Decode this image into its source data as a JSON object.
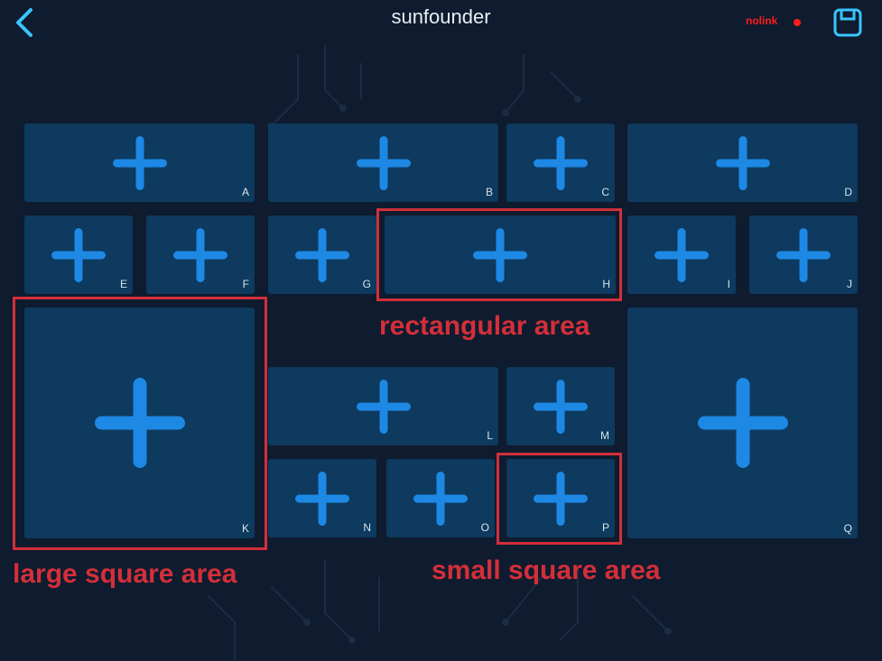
{
  "header": {
    "title": "sunfounder",
    "status_text": "nolink",
    "status_color": "#ff1c1c",
    "back_icon": "chevron-left-icon",
    "save_icon": "save-icon"
  },
  "colors": {
    "background": "#0f1b2e",
    "area_fill": "#0d3a5e",
    "plus": "#1e88e5",
    "callout": "#d32f3a"
  },
  "areas": [
    {
      "letter": "A"
    },
    {
      "letter": "B"
    },
    {
      "letter": "C"
    },
    {
      "letter": "D"
    },
    {
      "letter": "E"
    },
    {
      "letter": "F"
    },
    {
      "letter": "G"
    },
    {
      "letter": "H"
    },
    {
      "letter": "I"
    },
    {
      "letter": "J"
    },
    {
      "letter": "K"
    },
    {
      "letter": "L"
    },
    {
      "letter": "M"
    },
    {
      "letter": "N"
    },
    {
      "letter": "O"
    },
    {
      "letter": "P"
    },
    {
      "letter": "Q"
    }
  ],
  "annotations": {
    "rectangular": "rectangular area",
    "large_square": "large square area",
    "small_square": "small square area"
  }
}
